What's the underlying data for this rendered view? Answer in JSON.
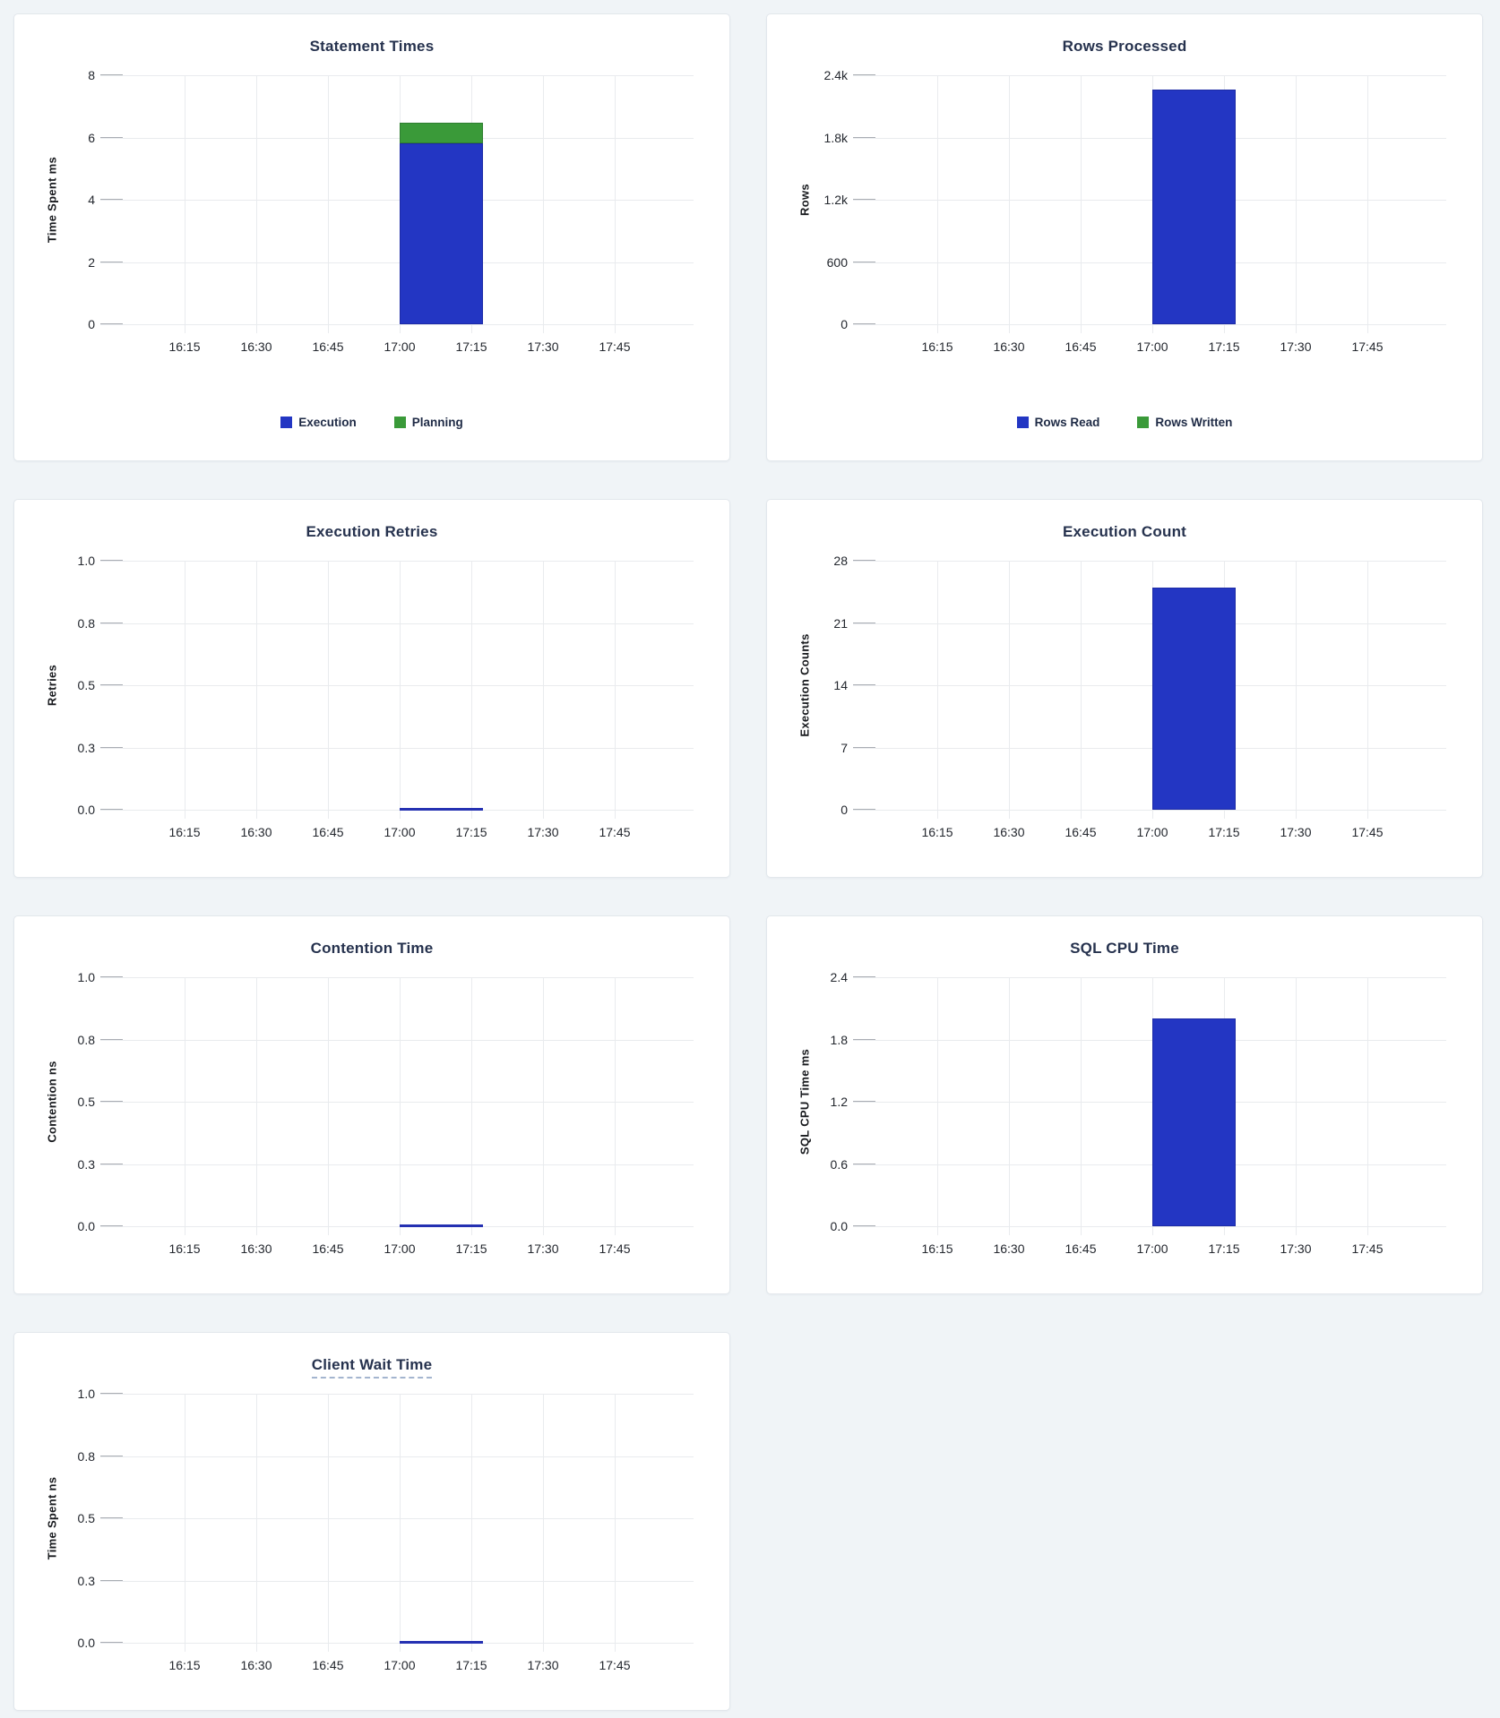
{
  "page": {
    "background_color": "#f0f4f7",
    "panel_color": "#ffffff",
    "title_color": "#26324e",
    "accent_blue": "#2336c3",
    "accent_green": "#3a9a39"
  },
  "chart_data": [
    {
      "type": "bar",
      "title": "Statement Times",
      "ylabel": "Time Spent ms",
      "ymax": 8,
      "ytick_labels": [
        "8",
        "6",
        "4",
        "2",
        "0"
      ],
      "xtick_labels": [
        "16:15",
        "16:30",
        "16:45",
        "17:00",
        "17:15",
        "17:30",
        "17:45"
      ],
      "x_domain": [
        "16:00",
        "18:00"
      ],
      "grid": true,
      "legend_position": "bottom",
      "legend": [
        {
          "label": "Execution",
          "color": "#2336c3"
        },
        {
          "label": "Planning",
          "color": "#3a9a39"
        }
      ],
      "bars": [
        {
          "x_start": "17:00",
          "x_end": "17:15",
          "segments": [
            {
              "name": "Execution",
              "value": 5.8,
              "color": "#2336c3",
              "border": "#1d2ba6"
            },
            {
              "name": "Planning",
              "value": 0.68,
              "color": "#3a9a39",
              "border": "#2f7e31"
            }
          ]
        }
      ]
    },
    {
      "type": "bar",
      "title": "Rows Processed",
      "ylabel": "Rows",
      "ymax": 2400,
      "ytick_labels": [
        "2.4k",
        "1.8k",
        "1.2k",
        "600",
        "0"
      ],
      "xtick_labels": [
        "16:15",
        "16:30",
        "16:45",
        "17:00",
        "17:15",
        "17:30",
        "17:45"
      ],
      "x_domain": [
        "16:00",
        "18:00"
      ],
      "grid": true,
      "legend_position": "bottom",
      "legend": [
        {
          "label": "Rows Read",
          "color": "#2336c3"
        },
        {
          "label": "Rows Written",
          "color": "#3a9a39"
        }
      ],
      "bars": [
        {
          "x_start": "17:00",
          "x_end": "17:15",
          "segments": [
            {
              "name": "Rows Read",
              "value": 2260,
              "color": "#2336c3",
              "border": "#1d2ba6"
            },
            {
              "name": "Rows Written",
              "value": 0,
              "color": "#3a9a39",
              "border": "#2f7e31"
            }
          ]
        }
      ]
    },
    {
      "type": "bar",
      "title": "Execution Retries",
      "ylabel": "Retries",
      "ymax": 1,
      "ytick_labels": [
        "1.0",
        "0.8",
        "0.5",
        "0.3",
        "0.0"
      ],
      "xtick_labels": [
        "16:15",
        "16:30",
        "16:45",
        "17:00",
        "17:15",
        "17:30",
        "17:45"
      ],
      "x_domain": [
        "16:00",
        "18:00"
      ],
      "grid": true,
      "legend_position": "none",
      "legend": [],
      "bars": [
        {
          "x_start": "17:00",
          "x_end": "17:15",
          "segments": [
            {
              "name": "Retries",
              "value": 0,
              "color": "#2336c3",
              "border": "#1d2ba6"
            }
          ]
        }
      ]
    },
    {
      "type": "bar",
      "title": "Execution Count",
      "ylabel": "Execution Counts",
      "ymax": 28,
      "ytick_labels": [
        "28",
        "21",
        "14",
        "7",
        "0"
      ],
      "xtick_labels": [
        "16:15",
        "16:30",
        "16:45",
        "17:00",
        "17:15",
        "17:30",
        "17:45"
      ],
      "x_domain": [
        "16:00",
        "18:00"
      ],
      "grid": true,
      "legend_position": "none",
      "legend": [],
      "bars": [
        {
          "x_start": "17:00",
          "x_end": "17:15",
          "segments": [
            {
              "name": "Execution Count",
              "value": 25,
              "color": "#2336c3",
              "border": "#1d2ba6"
            }
          ]
        }
      ]
    },
    {
      "type": "bar",
      "title": "Contention Time",
      "ylabel": "Contention ns",
      "ymax": 1,
      "ytick_labels": [
        "1.0",
        "0.8",
        "0.5",
        "0.3",
        "0.0"
      ],
      "xtick_labels": [
        "16:15",
        "16:30",
        "16:45",
        "17:00",
        "17:15",
        "17:30",
        "17:45"
      ],
      "x_domain": [
        "16:00",
        "18:00"
      ],
      "grid": true,
      "legend_position": "none",
      "legend": [],
      "bars": [
        {
          "x_start": "17:00",
          "x_end": "17:15",
          "segments": [
            {
              "name": "Contention",
              "value": 0,
              "color": "#2336c3",
              "border": "#1d2ba6"
            }
          ]
        }
      ]
    },
    {
      "type": "bar",
      "title": "SQL CPU Time",
      "ylabel": "SQL CPU Time ms",
      "ymax": 2.4,
      "ytick_labels": [
        "2.4",
        "1.8",
        "1.2",
        "0.6",
        "0.0"
      ],
      "xtick_labels": [
        "16:15",
        "16:30",
        "16:45",
        "17:00",
        "17:15",
        "17:30",
        "17:45"
      ],
      "x_domain": [
        "16:00",
        "18:00"
      ],
      "grid": true,
      "legend_position": "none",
      "legend": [],
      "bars": [
        {
          "x_start": "17:00",
          "x_end": "17:15",
          "segments": [
            {
              "name": "SQL CPU Time",
              "value": 2.0,
              "color": "#2336c3",
              "border": "#1d2ba6"
            }
          ]
        }
      ]
    },
    {
      "type": "bar",
      "title": "Client Wait Time",
      "title_underline": true,
      "ylabel": "Time Spent ns",
      "ymax": 1,
      "ytick_labels": [
        "1.0",
        "0.8",
        "0.5",
        "0.3",
        "0.0"
      ],
      "xtick_labels": [
        "16:15",
        "16:30",
        "16:45",
        "17:00",
        "17:15",
        "17:30",
        "17:45"
      ],
      "x_domain": [
        "16:00",
        "18:00"
      ],
      "grid": true,
      "legend_position": "none",
      "legend": [],
      "bars": [
        {
          "x_start": "17:00",
          "x_end": "17:15",
          "segments": [
            {
              "name": "Client Wait",
              "value": 0,
              "color": "#2336c3",
              "border": "#1d2ba6"
            }
          ]
        }
      ]
    }
  ]
}
